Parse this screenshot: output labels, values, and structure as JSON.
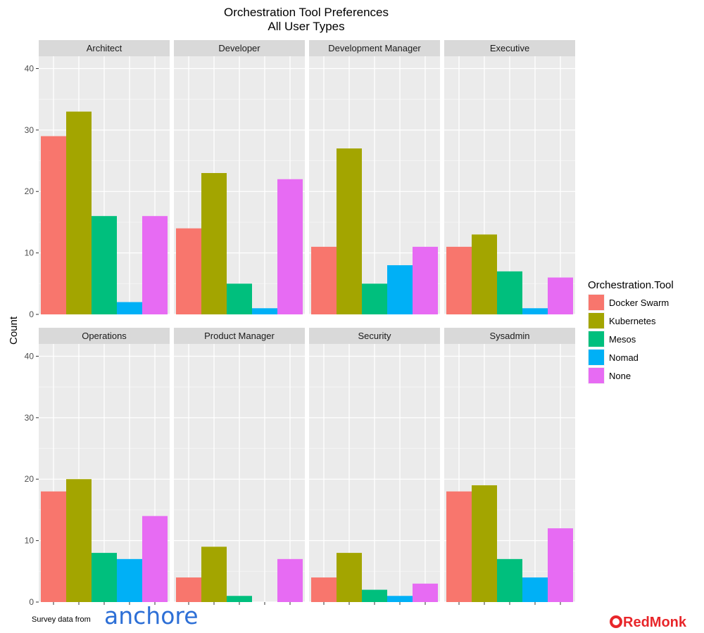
{
  "chart_data": {
    "type": "bar",
    "title": "Orchestration Tool Preferences",
    "subtitle": "All User Types",
    "ylabel": "Count",
    "xlabel": "",
    "ylim": [
      0,
      42
    ],
    "yticks": [
      0,
      10,
      20,
      30,
      40
    ],
    "grid": true,
    "legend": {
      "title": "Orchestration.Tool",
      "position": "right",
      "entries": [
        "Docker Swarm",
        "Kubernetes",
        "Mesos",
        "Nomad",
        "None"
      ]
    },
    "categories": [
      "Docker Swarm",
      "Kubernetes",
      "Mesos",
      "Nomad",
      "None"
    ],
    "colors": {
      "Docker Swarm": "#F8766D",
      "Kubernetes": "#A3A500",
      "Mesos": "#00BF7D",
      "Nomad": "#00B0F6",
      "None": "#E76BF3"
    },
    "panels": [
      {
        "name": "Architect",
        "values": [
          29,
          33,
          16,
          2,
          16
        ]
      },
      {
        "name": "Developer",
        "values": [
          14,
          23,
          5,
          1,
          22
        ]
      },
      {
        "name": "Development Manager",
        "values": [
          11,
          27,
          5,
          8,
          11
        ]
      },
      {
        "name": "Executive",
        "values": [
          11,
          13,
          7,
          1,
          6
        ]
      },
      {
        "name": "Operations",
        "values": [
          18,
          20,
          8,
          7,
          14
        ]
      },
      {
        "name": "Product Manager",
        "values": [
          4,
          9,
          1,
          0,
          7
        ]
      },
      {
        "name": "Security",
        "values": [
          4,
          8,
          2,
          1,
          3
        ]
      },
      {
        "name": "Sysadmin",
        "values": [
          18,
          19,
          7,
          4,
          12
        ]
      }
    ]
  },
  "caption": {
    "source_text": "Survey data from",
    "source_logo": "anchore",
    "brand_logo": "RedMonk"
  }
}
